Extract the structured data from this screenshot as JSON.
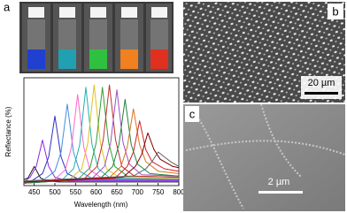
{
  "panel_labels": [
    "a",
    "b",
    "c"
  ],
  "scale_bars": [
    "20 µm",
    "2 µm"
  ],
  "chart_data": {
    "type": "line",
    "x_label": "Wavelength (nm)",
    "y_label": "Reflectance (%)",
    "xlim": [
      425,
      800
    ],
    "xticks": [
      450,
      500,
      550,
      600,
      650,
      700,
      750,
      800
    ],
    "ylim": [
      0,
      45
    ],
    "series": [
      {
        "color": "#111111",
        "x": [
          425,
          435,
          450,
          465,
          480,
          510,
          800
        ],
        "values": [
          2.5,
          3.2,
          8,
          3.2,
          2,
          1.5,
          1.5
        ]
      },
      {
        "color": "#8b2be2",
        "x": [
          425,
          440,
          455,
          470,
          485,
          500,
          530,
          800
        ],
        "values": [
          1.5,
          3.5,
          8,
          19,
          8,
          3.5,
          2,
          2
        ]
      },
      {
        "color": "#3030c0",
        "x": [
          425,
          440,
          470,
          485,
          500,
          515,
          530,
          560,
          800
        ],
        "values": [
          1,
          1.5,
          5,
          12,
          29,
          12,
          5,
          2.5,
          2.5
        ]
      },
      {
        "color": "#4090e0",
        "x": [
          425,
          470,
          500,
          515,
          530,
          545,
          560,
          590,
          800
        ],
        "values": [
          1,
          2,
          6,
          14,
          34,
          14,
          6,
          3,
          3
        ]
      },
      {
        "color": "#ff66cc",
        "x": [
          425,
          495,
          525,
          540,
          555,
          570,
          585,
          615,
          800
        ],
        "values": [
          1,
          2,
          6.5,
          16,
          38,
          16,
          6.5,
          3,
          3
        ]
      },
      {
        "color": "#20b0b0",
        "x": [
          425,
          515,
          545,
          560,
          575,
          590,
          605,
          635,
          800
        ],
        "values": [
          1,
          2,
          7,
          17,
          41,
          17,
          7,
          3,
          3
        ]
      },
      {
        "color": "#e0c020",
        "x": [
          425,
          535,
          565,
          580,
          595,
          610,
          625,
          655,
          800
        ],
        "values": [
          1,
          2.5,
          7,
          18,
          42,
          18,
          7,
          3.5,
          3
        ]
      },
      {
        "color": "#30a030",
        "x": [
          425,
          555,
          585,
          600,
          615,
          630,
          645,
          675,
          800
        ],
        "values": [
          1,
          2.5,
          7.5,
          18,
          41,
          18,
          8,
          4,
          3.5
        ]
      },
      {
        "color": "#c03030",
        "x": [
          425,
          572,
          602,
          617,
          632,
          647,
          662,
          692,
          800
        ],
        "values": [
          1,
          3,
          8,
          19,
          42,
          19,
          8,
          4,
          3.5
        ]
      },
      {
        "color": "#a050c0",
        "x": [
          425,
          590,
          620,
          635,
          650,
          665,
          680,
          710,
          800
        ],
        "values": [
          1,
          3,
          8,
          18,
          40,
          18,
          9,
          4.5,
          4
        ]
      },
      {
        "color": "#208040",
        "x": [
          425,
          610,
          640,
          655,
          670,
          685,
          700,
          730,
          800
        ],
        "values": [
          1,
          3,
          8,
          17,
          36,
          17,
          9,
          5,
          4
        ]
      },
      {
        "color": "#e07020",
        "x": [
          425,
          630,
          660,
          675,
          690,
          705,
          720,
          750,
          800
        ],
        "values": [
          1.5,
          3,
          8,
          16,
          32,
          17,
          10,
          6,
          5
        ]
      },
      {
        "color": "#d02020",
        "x": [
          425,
          645,
          675,
          690,
          705,
          720,
          735,
          765,
          800
        ],
        "values": [
          1.5,
          3,
          8,
          14,
          27,
          15,
          10,
          7,
          6
        ]
      },
      {
        "color": "#800000",
        "x": [
          425,
          665,
          695,
          710,
          725,
          740,
          755,
          785,
          800
        ],
        "values": [
          1.5,
          3.5,
          8,
          13,
          22,
          15,
          11,
          8,
          7.5
        ]
      },
      {
        "color": "#606060",
        "x": [
          425,
          690,
          720,
          735,
          750,
          765,
          780,
          800
        ],
        "values": [
          2,
          4,
          7,
          10,
          14,
          12,
          10,
          8
        ]
      }
    ]
  }
}
